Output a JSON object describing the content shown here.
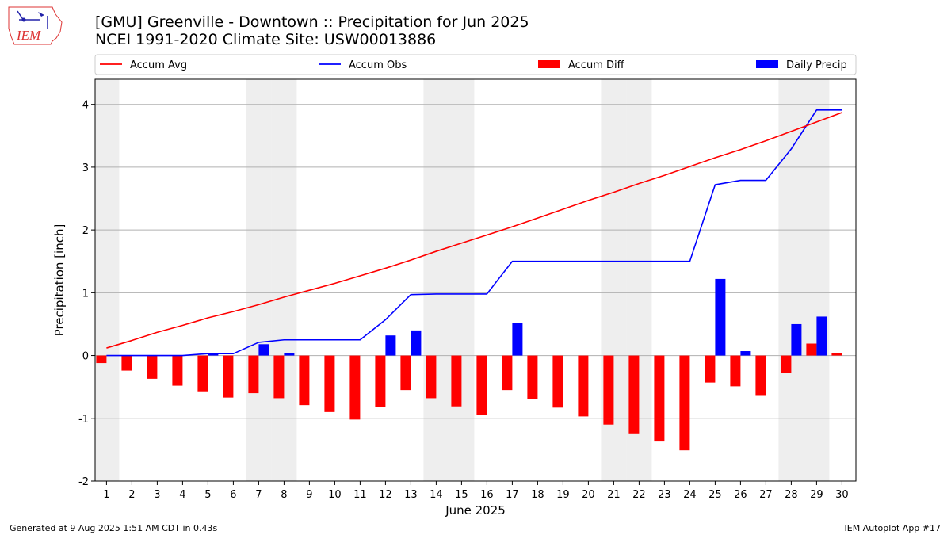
{
  "header": {
    "logo_text": "IEM",
    "title_line1": "[GMU] Greenville - Downtown :: Precipitation for Jun 2025",
    "title_line2": "NCEI 1991-2020 Climate Site: USW00013886"
  },
  "footer": {
    "generated": "Generated at 9 Aug 2025 1:51 AM CDT in 0.43s",
    "app": "IEM Autoplot App #17"
  },
  "colors": {
    "avg": "#ff0000",
    "obs": "#0000ff",
    "diff": "#ff0000",
    "daily": "#0000ff",
    "weekend_band": "#eeeeee",
    "grid": "#b0b0b0"
  },
  "chart_data": {
    "type": "bar",
    "xlabel": "June 2025",
    "ylabel": "Precipitation [inch]",
    "ylim": [
      -2.0,
      4.4
    ],
    "yticks": [
      -2,
      -1,
      0,
      1,
      2,
      3,
      4
    ],
    "grid": "horizontal",
    "legend": "top, above plot",
    "weekend_days": [
      1,
      7,
      8,
      14,
      15,
      21,
      22,
      28,
      29
    ],
    "x": [
      1,
      2,
      3,
      4,
      5,
      6,
      7,
      8,
      9,
      10,
      11,
      12,
      13,
      14,
      15,
      16,
      17,
      18,
      19,
      20,
      21,
      22,
      23,
      24,
      25,
      26,
      27,
      28,
      29,
      30
    ],
    "series": [
      {
        "name": "Accum Avg",
        "kind": "line",
        "values": [
          0.12,
          0.24,
          0.37,
          0.48,
          0.6,
          0.7,
          0.81,
          0.93,
          1.04,
          1.15,
          1.27,
          1.39,
          1.52,
          1.66,
          1.79,
          1.92,
          2.05,
          2.19,
          2.33,
          2.47,
          2.6,
          2.74,
          2.87,
          3.01,
          3.15,
          3.28,
          3.42,
          3.57,
          3.72,
          3.87
        ]
      },
      {
        "name": "Accum Obs",
        "kind": "line",
        "values": [
          0.0,
          0.0,
          0.0,
          0.0,
          0.03,
          0.03,
          0.21,
          0.25,
          0.25,
          0.25,
          0.25,
          0.57,
          0.97,
          0.98,
          0.98,
          0.98,
          1.5,
          1.5,
          1.5,
          1.5,
          1.5,
          1.5,
          1.5,
          1.5,
          2.72,
          2.79,
          2.79,
          3.29,
          3.91,
          3.91
        ]
      },
      {
        "name": "Accum Diff",
        "kind": "bar",
        "values": [
          -0.12,
          -0.24,
          -0.37,
          -0.48,
          -0.57,
          -0.67,
          -0.6,
          -0.68,
          -0.79,
          -0.9,
          -1.02,
          -0.82,
          -0.55,
          -0.68,
          -0.81,
          -0.94,
          -0.55,
          -0.69,
          -0.83,
          -0.97,
          -1.1,
          -1.24,
          -1.37,
          -1.51,
          -0.43,
          -0.49,
          -0.63,
          -0.28,
          0.19,
          0.04
        ]
      },
      {
        "name": "Daily Precip",
        "kind": "bar",
        "values": [
          0,
          0,
          0,
          0,
          0.03,
          0,
          0.18,
          0.04,
          0,
          0,
          0,
          0.32,
          0.4,
          0,
          0,
          0,
          0.52,
          0,
          0,
          0,
          0,
          0,
          0,
          0,
          1.22,
          0.07,
          0,
          0.5,
          0.62,
          0
        ]
      }
    ]
  }
}
